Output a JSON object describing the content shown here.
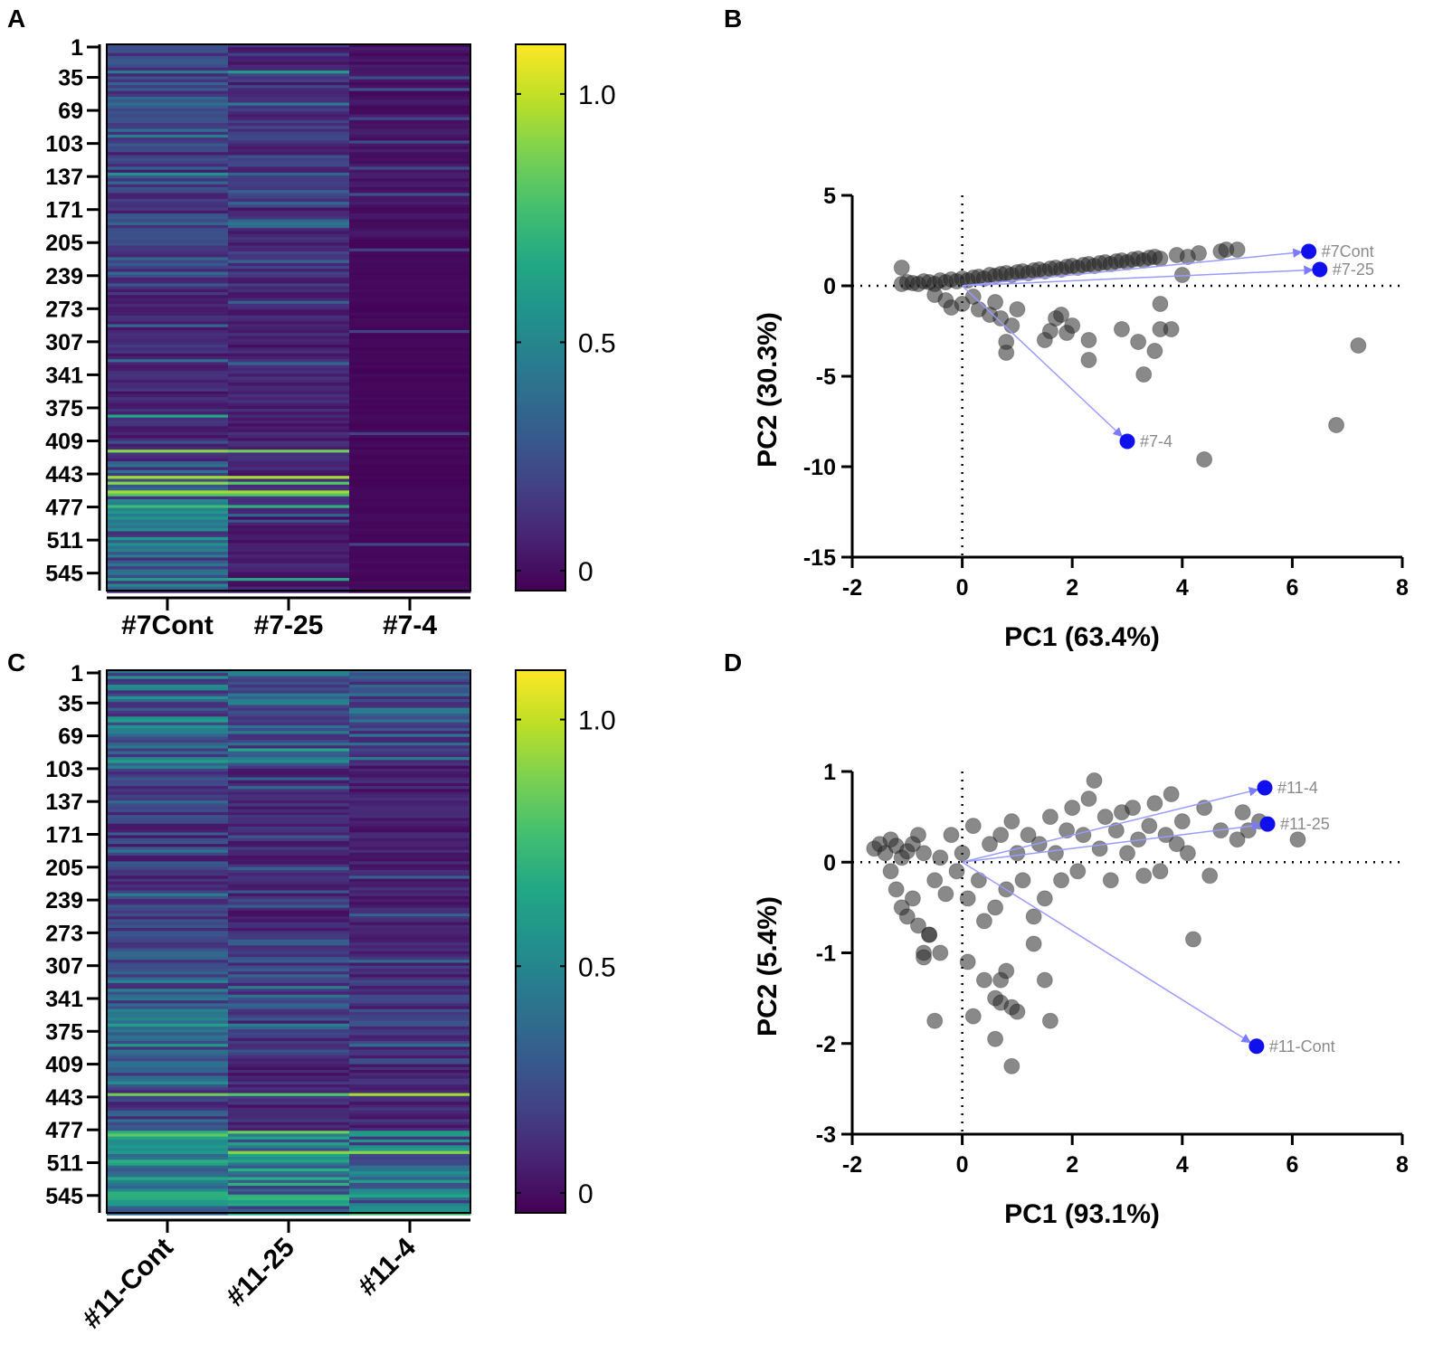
{
  "chart_data": [
    {
      "panel": "A",
      "type": "heatmap",
      "row_tick_labels": [
        "1",
        "35",
        "69",
        "103",
        "137",
        "171",
        "205",
        "239",
        "273",
        "307",
        "341",
        "375",
        "409",
        "443",
        "477",
        "511",
        "545"
      ],
      "row_count": 562,
      "columns": [
        "#7Cont",
        "#7-25",
        "#7-4"
      ],
      "colorbar": {
        "range": [
          0,
          1.1
        ],
        "ticks": [
          "0",
          "0.5",
          "1.0"
        ],
        "colormap": "viridis"
      },
      "bands": [
        {
          "col": 0,
          "rows": [
            1,
            250
          ],
          "value": 0.22
        },
        {
          "col": 0,
          "rows": [
            250,
            430
          ],
          "value": 0.12
        },
        {
          "col": 0,
          "rows": [
            430,
            455
          ],
          "value": 0.3
        },
        {
          "col": 0,
          "rows": [
            455,
            562
          ],
          "value": 0.35
        },
        {
          "col": 1,
          "rows": [
            1,
            250
          ],
          "value": 0.15
        },
        {
          "col": 1,
          "rows": [
            250,
            562
          ],
          "value": 0.1
        },
        {
          "col": 2,
          "rows": [
            1,
            200
          ],
          "value": 0.06
        },
        {
          "col": 2,
          "rows": [
            200,
            562
          ],
          "value": 0.02
        }
      ],
      "highlights": [
        {
          "col": 0,
          "row": 28,
          "value": 0.45
        },
        {
          "col": 1,
          "row": 28,
          "value": 0.6
        },
        {
          "col": 0,
          "row": 62,
          "value": 0.4
        },
        {
          "col": 1,
          "row": 62,
          "value": 0.45
        },
        {
          "col": 0,
          "row": 135,
          "value": 0.55
        },
        {
          "col": 1,
          "row": 135,
          "value": 0.35
        },
        {
          "col": 0,
          "row": 383,
          "value": 0.65
        },
        {
          "col": 0,
          "row": 420,
          "value": 0.9
        },
        {
          "col": 1,
          "row": 420,
          "value": 0.85
        },
        {
          "col": 0,
          "row": 445,
          "value": 0.95
        },
        {
          "col": 1,
          "row": 445,
          "value": 0.95
        },
        {
          "col": 0,
          "row": 452,
          "value": 0.9
        },
        {
          "col": 1,
          "row": 452,
          "value": 0.8
        },
        {
          "col": 0,
          "row": 460,
          "value": 0.95
        },
        {
          "col": 1,
          "row": 460,
          "value": 0.95
        },
        {
          "col": 0,
          "row": 465,
          "value": 0.8
        },
        {
          "col": 1,
          "row": 465,
          "value": 0.8
        },
        {
          "col": 0,
          "row": 475,
          "value": 0.75
        },
        {
          "col": 1,
          "row": 475,
          "value": 0.7
        },
        {
          "col": 0,
          "row": 552,
          "value": 0.6
        },
        {
          "col": 1,
          "row": 552,
          "value": 0.65
        }
      ]
    },
    {
      "panel": "B",
      "type": "scatter",
      "xlabel": "PC1 (63.4%)",
      "ylabel": "PC2 (30.3%)",
      "xlim": [
        -2,
        8
      ],
      "ylim": [
        -15,
        5
      ],
      "xticks": [
        "-2",
        "0",
        "2",
        "4",
        "6",
        "8"
      ],
      "yticks": [
        "5",
        "0",
        "-5",
        "-10",
        "-15"
      ],
      "points": [
        [
          -1.1,
          0.1
        ],
        [
          -1.0,
          0.2
        ],
        [
          -0.9,
          0.15
        ],
        [
          -0.8,
          0.1
        ],
        [
          -0.7,
          0.25
        ],
        [
          -0.6,
          0.2
        ],
        [
          -0.5,
          0.1
        ],
        [
          -0.4,
          0.3
        ],
        [
          -0.3,
          0.2
        ],
        [
          -0.2,
          0.35
        ],
        [
          -0.1,
          0.25
        ],
        [
          0.0,
          0.4
        ],
        [
          0.1,
          0.3
        ],
        [
          0.2,
          0.45
        ],
        [
          0.3,
          0.5
        ],
        [
          0.4,
          0.4
        ],
        [
          0.5,
          0.6
        ],
        [
          0.6,
          0.55
        ],
        [
          0.7,
          0.65
        ],
        [
          0.8,
          0.7
        ],
        [
          0.9,
          0.6
        ],
        [
          1.0,
          0.75
        ],
        [
          1.1,
          0.8
        ],
        [
          1.2,
          0.7
        ],
        [
          1.3,
          0.85
        ],
        [
          1.4,
          0.9
        ],
        [
          1.5,
          0.8
        ],
        [
          1.6,
          0.95
        ],
        [
          1.7,
          1.0
        ],
        [
          1.8,
          0.9
        ],
        [
          1.9,
          1.05
        ],
        [
          2.0,
          1.1
        ],
        [
          2.1,
          1.0
        ],
        [
          2.2,
          1.15
        ],
        [
          2.3,
          1.2
        ],
        [
          2.4,
          1.1
        ],
        [
          2.5,
          1.25
        ],
        [
          2.6,
          1.3
        ],
        [
          2.7,
          1.2
        ],
        [
          2.8,
          1.35
        ],
        [
          2.9,
          1.4
        ],
        [
          3.0,
          1.3
        ],
        [
          3.1,
          1.45
        ],
        [
          3.2,
          1.5
        ],
        [
          3.3,
          1.4
        ],
        [
          3.4,
          1.55
        ],
        [
          3.5,
          1.6
        ],
        [
          3.6,
          1.5
        ],
        [
          3.9,
          1.7
        ],
        [
          4.1,
          1.6
        ],
        [
          4.3,
          1.8
        ],
        [
          4.7,
          1.9
        ],
        [
          4.8,
          2.0
        ],
        [
          5.0,
          2.0
        ],
        [
          -1.1,
          1.0
        ],
        [
          -0.5,
          -0.5
        ],
        [
          -0.3,
          -0.8
        ],
        [
          -0.2,
          -1.2
        ],
        [
          0.0,
          -1.0
        ],
        [
          0.2,
          -0.6
        ],
        [
          0.3,
          -1.3
        ],
        [
          0.5,
          -1.6
        ],
        [
          0.6,
          -0.9
        ],
        [
          0.7,
          -1.8
        ],
        [
          0.8,
          -3.1
        ],
        [
          0.8,
          -3.7
        ],
        [
          0.9,
          -2.2
        ],
        [
          1.0,
          -1.3
        ],
        [
          1.5,
          -3.0
        ],
        [
          1.6,
          -2.5
        ],
        [
          1.7,
          -1.8
        ],
        [
          1.8,
          -1.6
        ],
        [
          1.9,
          -2.6
        ],
        [
          2.0,
          -2.2
        ],
        [
          2.3,
          -3.0
        ],
        [
          2.3,
          -4.1
        ],
        [
          2.9,
          -2.4
        ],
        [
          3.2,
          -3.1
        ],
        [
          3.3,
          -4.9
        ],
        [
          3.5,
          -3.6
        ],
        [
          3.6,
          -2.4
        ],
        [
          3.8,
          -2.4
        ],
        [
          3.6,
          -1.0
        ],
        [
          4.0,
          0.6
        ],
        [
          4.4,
          -9.6
        ],
        [
          6.8,
          -7.7
        ],
        [
          7.2,
          -3.3
        ]
      ],
      "loadings": [
        {
          "label": "#7Cont",
          "x": 6.3,
          "y": 1.9
        },
        {
          "label": "#7-25",
          "x": 6.5,
          "y": 0.9
        },
        {
          "label": "#7-4",
          "x": 3.0,
          "y": -8.6
        }
      ]
    },
    {
      "panel": "C",
      "type": "heatmap",
      "row_tick_labels": [
        "1",
        "35",
        "69",
        "103",
        "137",
        "171",
        "205",
        "239",
        "273",
        "307",
        "341",
        "375",
        "409",
        "443",
        "477",
        "511",
        "545"
      ],
      "row_count": 562,
      "columns": [
        "#11-Cont",
        "#11-25",
        "#11-4"
      ],
      "colorbar": {
        "range": [
          0,
          1.1
        ],
        "ticks": [
          "0",
          "0.5",
          "1.0"
        ],
        "colormap": "viridis"
      },
      "bands": [
        {
          "col": 0,
          "rows": [
            1,
            100
          ],
          "value": 0.35
        },
        {
          "col": 0,
          "rows": [
            100,
            280
          ],
          "value": 0.18
        },
        {
          "col": 0,
          "rows": [
            280,
            410
          ],
          "value": 0.3
        },
        {
          "col": 0,
          "rows": [
            410,
            478
          ],
          "value": 0.25
        },
        {
          "col": 0,
          "rows": [
            478,
            562
          ],
          "value": 0.5
        },
        {
          "col": 1,
          "rows": [
            1,
            100
          ],
          "value": 0.3
        },
        {
          "col": 1,
          "rows": [
            100,
            280
          ],
          "value": 0.12
        },
        {
          "col": 1,
          "rows": [
            280,
            410
          ],
          "value": 0.2
        },
        {
          "col": 1,
          "rows": [
            410,
            478
          ],
          "value": 0.12
        },
        {
          "col": 1,
          "rows": [
            478,
            562
          ],
          "value": 0.45
        },
        {
          "col": 2,
          "rows": [
            1,
            100
          ],
          "value": 0.28
        },
        {
          "col": 2,
          "rows": [
            100,
            280
          ],
          "value": 0.1
        },
        {
          "col": 2,
          "rows": [
            280,
            410
          ],
          "value": 0.18
        },
        {
          "col": 2,
          "rows": [
            410,
            478
          ],
          "value": 0.12
        },
        {
          "col": 2,
          "rows": [
            478,
            562
          ],
          "value": 0.4
        }
      ],
      "highlights": [
        {
          "col": 0,
          "row": 440,
          "value": 0.85
        },
        {
          "col": 1,
          "row": 440,
          "value": 0.8
        },
        {
          "col": 2,
          "row": 440,
          "value": 0.95
        },
        {
          "col": 0,
          "row": 480,
          "value": 0.7
        },
        {
          "col": 1,
          "row": 480,
          "value": 0.85
        },
        {
          "col": 2,
          "row": 480,
          "value": 0.6
        },
        {
          "col": 0,
          "row": 500,
          "value": 0.6
        },
        {
          "col": 1,
          "row": 500,
          "value": 0.9
        },
        {
          "col": 2,
          "row": 500,
          "value": 0.9
        },
        {
          "col": 0,
          "row": 545,
          "value": 0.7
        },
        {
          "col": 1,
          "row": 545,
          "value": 0.7
        },
        {
          "col": 2,
          "row": 545,
          "value": 0.65
        }
      ]
    },
    {
      "panel": "D",
      "type": "scatter",
      "xlabel": "PC1 (93.1%)",
      "ylabel": "PC2 (5.4%)",
      "xlim": [
        -2,
        8
      ],
      "ylim": [
        -3,
        1
      ],
      "xticks": [
        "-2",
        "0",
        "2",
        "4",
        "6",
        "8"
      ],
      "yticks": [
        "1",
        "0",
        "-1",
        "-2",
        "-3"
      ],
      "points": [
        [
          -1.6,
          0.15
        ],
        [
          -1.5,
          0.2
        ],
        [
          -1.4,
          0.1
        ],
        [
          -1.3,
          0.25
        ],
        [
          -1.2,
          0.18
        ],
        [
          -1.1,
          0.05
        ],
        [
          -1.0,
          0.12
        ],
        [
          -0.9,
          0.2
        ],
        [
          -0.8,
          0.3
        ],
        [
          -0.7,
          0.1
        ],
        [
          -1.3,
          -0.1
        ],
        [
          -1.2,
          -0.3
        ],
        [
          -1.1,
          -0.5
        ],
        [
          -1.0,
          -0.6
        ],
        [
          -0.9,
          -0.4
        ],
        [
          -0.8,
          -0.7
        ],
        [
          -0.7,
          -1.0
        ],
        [
          -0.6,
          -0.8
        ],
        [
          -0.5,
          -0.2
        ],
        [
          -0.4,
          0.05
        ],
        [
          -0.3,
          -0.35
        ],
        [
          -0.2,
          0.3
        ],
        [
          -0.1,
          -0.1
        ],
        [
          0.0,
          0.1
        ],
        [
          0.1,
          -0.4
        ],
        [
          0.2,
          0.4
        ],
        [
          0.3,
          -0.2
        ],
        [
          0.4,
          -0.65
        ],
        [
          0.5,
          0.2
        ],
        [
          0.6,
          -0.5
        ],
        [
          0.7,
          0.3
        ],
        [
          0.8,
          -0.3
        ],
        [
          0.9,
          0.45
        ],
        [
          1.0,
          0.1
        ],
        [
          1.1,
          -0.2
        ],
        [
          1.2,
          0.3
        ],
        [
          1.3,
          -0.6
        ],
        [
          1.4,
          0.2
        ],
        [
          1.5,
          -0.4
        ],
        [
          1.6,
          0.5
        ],
        [
          1.7,
          0.1
        ],
        [
          1.8,
          -0.2
        ],
        [
          1.9,
          0.35
        ],
        [
          2.0,
          0.6
        ],
        [
          2.1,
          -0.1
        ],
        [
          2.2,
          0.3
        ],
        [
          2.3,
          0.7
        ],
        [
          2.4,
          0.9
        ],
        [
          2.5,
          0.15
        ],
        [
          2.6,
          0.5
        ],
        [
          2.7,
          -0.2
        ],
        [
          2.8,
          0.35
        ],
        [
          2.9,
          0.55
        ],
        [
          3.0,
          0.1
        ],
        [
          3.1,
          0.6
        ],
        [
          3.2,
          0.25
        ],
        [
          3.3,
          -0.15
        ],
        [
          3.4,
          0.4
        ],
        [
          3.5,
          0.65
        ],
        [
          3.6,
          -0.1
        ],
        [
          3.7,
          0.3
        ],
        [
          3.8,
          0.75
        ],
        [
          3.9,
          0.2
        ],
        [
          4.0,
          0.45
        ],
        [
          4.1,
          0.1
        ],
        [
          4.2,
          -0.85
        ],
        [
          4.4,
          0.6
        ],
        [
          4.5,
          -0.15
        ],
        [
          4.7,
          0.35
        ],
        [
          5.0,
          0.25
        ],
        [
          5.1,
          0.55
        ],
        [
          5.4,
          0.45
        ],
        [
          5.2,
          0.35
        ],
        [
          6.1,
          0.25
        ],
        [
          -0.7,
          -1.05
        ],
        [
          -0.4,
          -1.0
        ],
        [
          0.1,
          -1.1
        ],
        [
          0.2,
          -1.7
        ],
        [
          0.4,
          -1.3
        ],
        [
          0.6,
          -1.5
        ],
        [
          0.7,
          -1.3
        ],
        [
          0.7,
          -1.55
        ],
        [
          0.8,
          -1.2
        ],
        [
          0.9,
          -1.6
        ],
        [
          1.0,
          -1.65
        ],
        [
          1.5,
          -1.3
        ],
        [
          1.6,
          -1.75
        ],
        [
          1.3,
          -0.9
        ],
        [
          0.9,
          -2.25
        ],
        [
          0.6,
          -1.95
        ],
        [
          -0.6,
          -0.8
        ],
        [
          -0.5,
          -1.75
        ]
      ],
      "loadings": [
        {
          "label": "#11-4",
          "x": 5.5,
          "y": 0.82
        },
        {
          "label": "#11-25",
          "x": 5.55,
          "y": 0.42
        },
        {
          "label": "#11-Cont",
          "x": 5.35,
          "y": -2.03
        }
      ]
    }
  ]
}
